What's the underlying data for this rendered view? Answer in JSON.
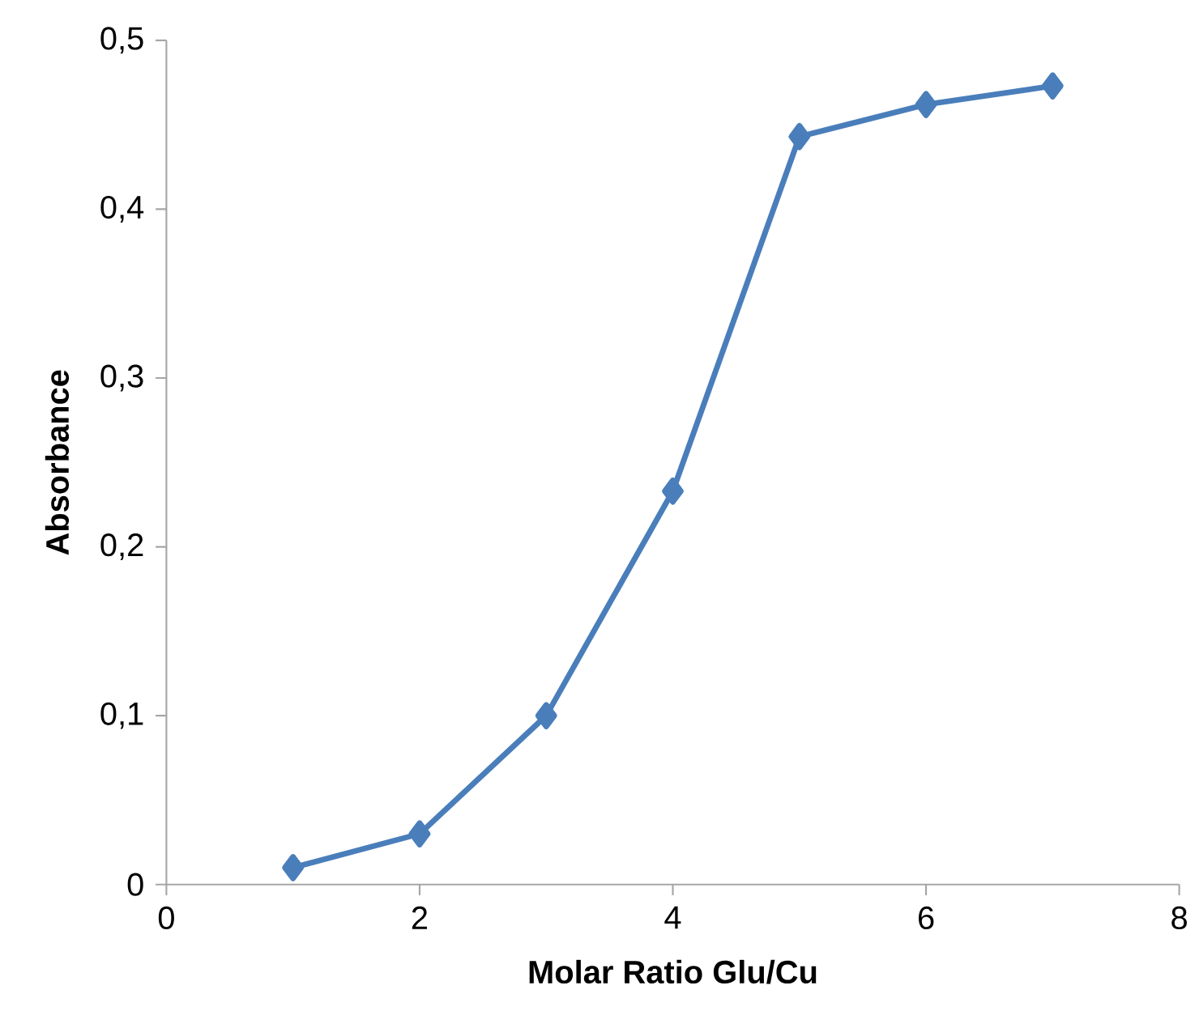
{
  "chart_data": {
    "type": "line",
    "xlabel": "Molar Ratio Glu/Cu",
    "ylabel": "Absorbance",
    "x": [
      1,
      2,
      3,
      4,
      5,
      6,
      7
    ],
    "series": [
      {
        "color": "#4a7ebb",
        "values": [
          0.01,
          0.03,
          0.1,
          0.233,
          0.443,
          0.462,
          0.473
        ]
      }
    ],
    "xlim": [
      0,
      8
    ],
    "xticks": [
      0,
      2,
      4,
      6,
      8
    ],
    "ylim": [
      0,
      0.5
    ],
    "yticks": [
      {
        "value": 0,
        "label": "0"
      },
      {
        "value": 0.1,
        "label": "0,1"
      },
      {
        "value": 0.2,
        "label": "0,2"
      },
      {
        "value": 0.3,
        "label": "0,3"
      },
      {
        "value": 0.4,
        "label": "0,4"
      },
      {
        "value": 0.5,
        "label": "0,5"
      }
    ],
    "marker": "diamond",
    "line_style": "solid"
  }
}
